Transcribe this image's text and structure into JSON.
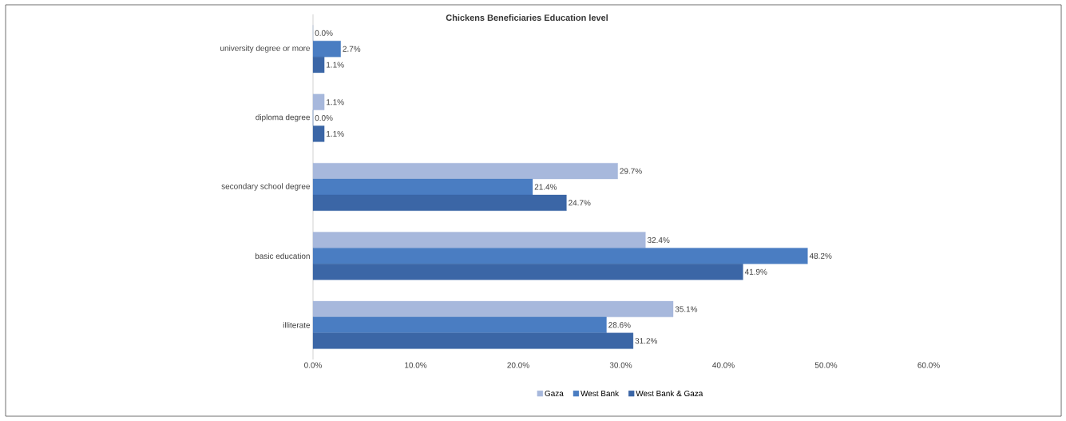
{
  "chart_data": {
    "type": "bar",
    "orientation": "horizontal",
    "title": "Chickens Beneficiaries Education level",
    "categories": [
      "university degree or more",
      "diploma degree",
      "secondary school degree",
      "basic education",
      "illiterate"
    ],
    "series": [
      {
        "name": "Gaza",
        "color": "#a7b8dc",
        "values": [
          0.0,
          1.1,
          29.7,
          32.4,
          35.1
        ],
        "value_labels": [
          "0.0%",
          "1.1%",
          "29.7%",
          "32.4%",
          "35.1%"
        ]
      },
      {
        "name": "West Bank",
        "color": "#4a7dc2",
        "values": [
          2.7,
          0.0,
          21.4,
          48.2,
          28.6
        ],
        "value_labels": [
          "2.7%",
          "0.0%",
          "21.4%",
          "48.2%",
          "28.6%"
        ]
      },
      {
        "name": "West Bank & Gaza",
        "color": "#3b66a6",
        "values": [
          1.1,
          1.1,
          24.7,
          41.9,
          31.2
        ],
        "value_labels": [
          "1.1%",
          "1.1%",
          "24.7%",
          "41.9%",
          "31.2%"
        ]
      }
    ],
    "xlim": [
      0,
      60
    ],
    "xticks": [
      {
        "value": 0,
        "label": "0.0%"
      },
      {
        "value": 10,
        "label": "10.0%"
      },
      {
        "value": 20,
        "label": "20.0%"
      },
      {
        "value": 30,
        "label": "30.0%"
      },
      {
        "value": 40,
        "label": "40.0%"
      },
      {
        "value": 50,
        "label": "50.0%"
      },
      {
        "value": 60,
        "label": "60.0%"
      }
    ],
    "legend": "bottom",
    "grid": false
  }
}
